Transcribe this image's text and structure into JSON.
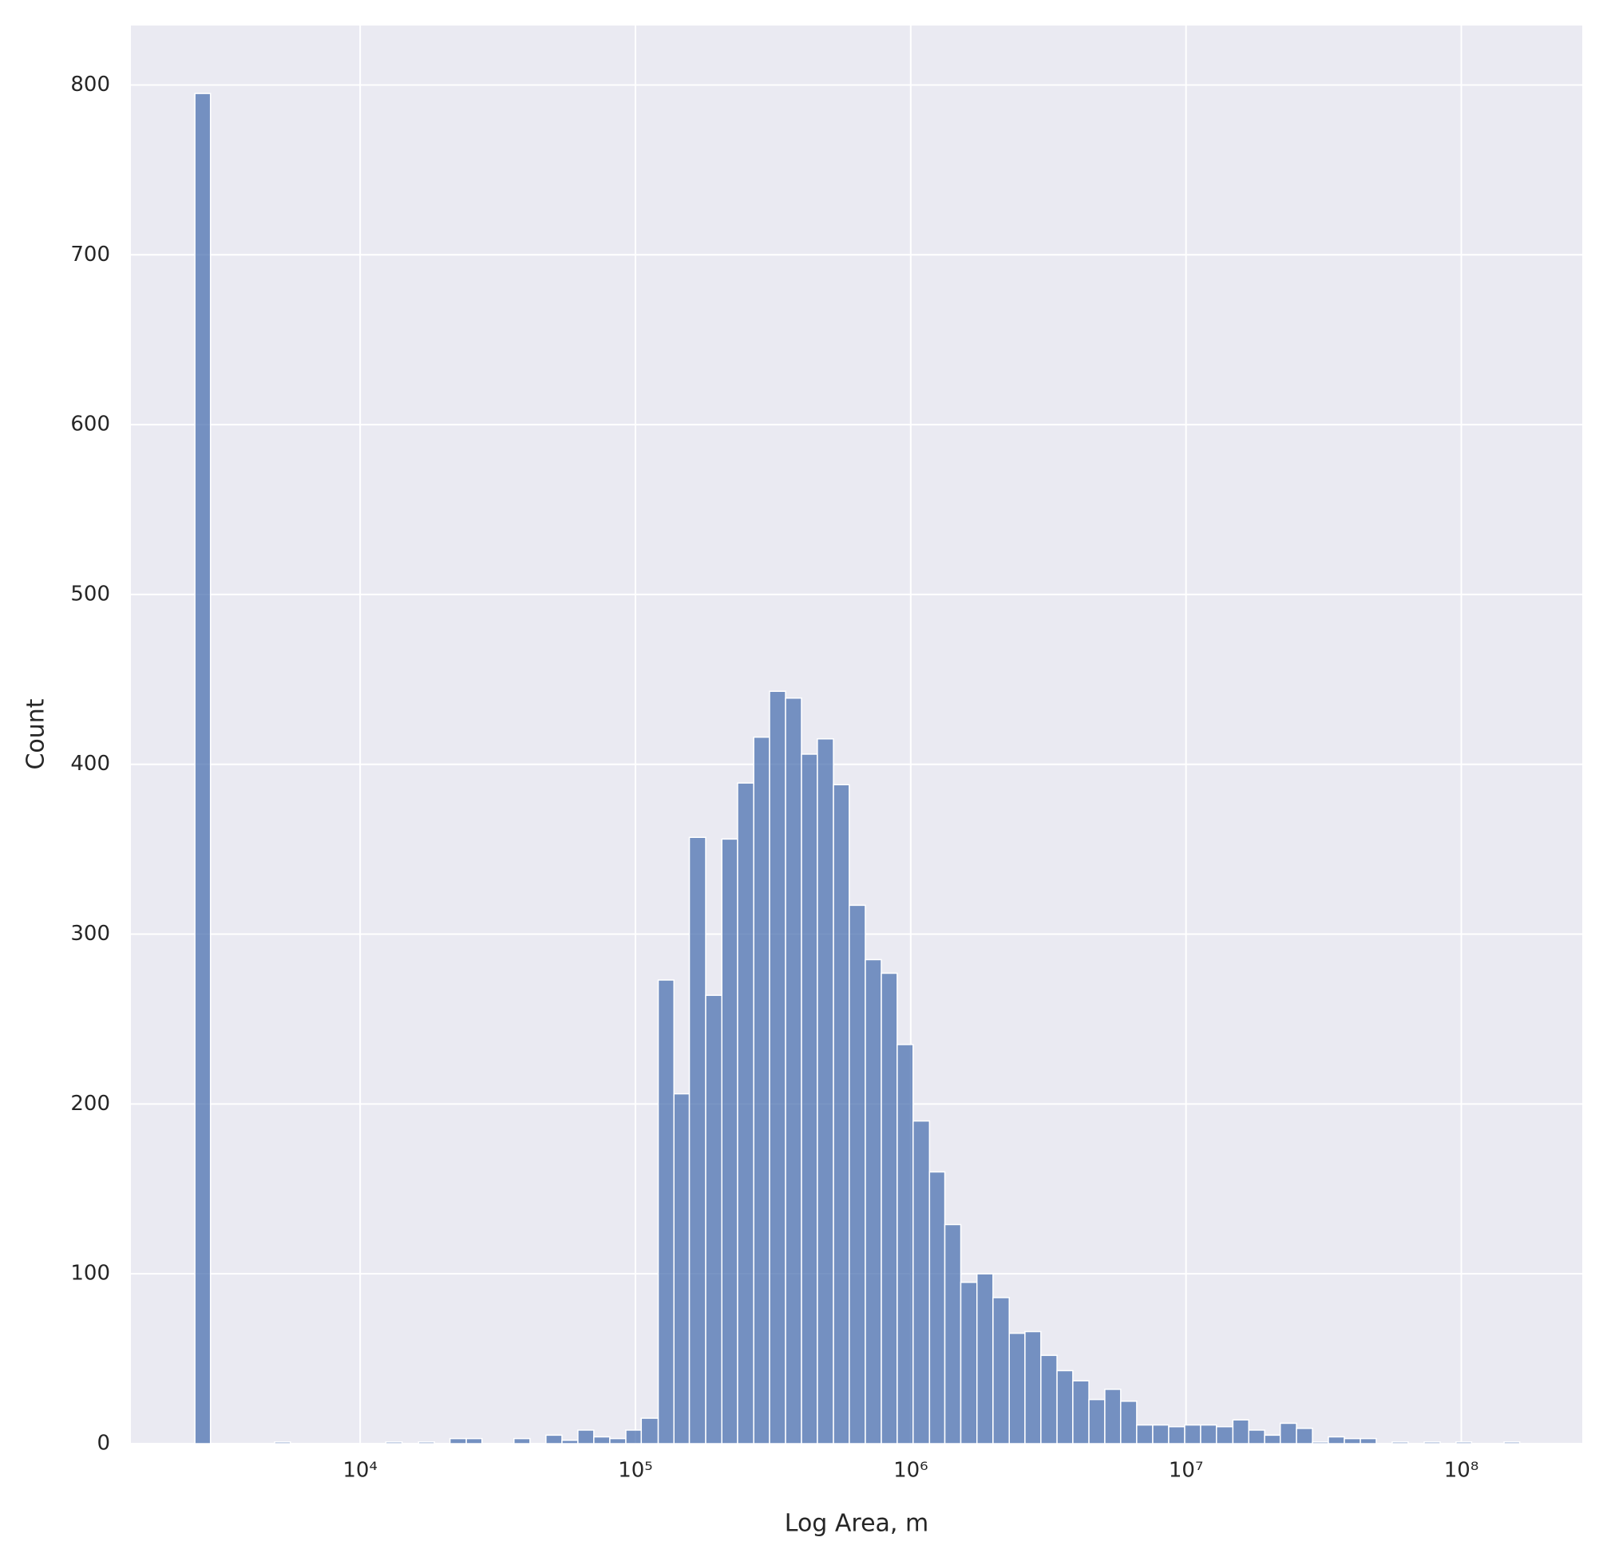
{
  "chart_data": {
    "type": "histogram",
    "xlabel": "Log Area, m",
    "ylabel": "Count",
    "xscale": "log",
    "grid": true,
    "color": "#4c72b0",
    "bins": [
      2510,
      2860,
      3270,
      3740,
      4280,
      4890,
      5580,
      6380,
      7290,
      8340,
      9530,
      10900,
      12400,
      14200,
      16300,
      18600,
      21200,
      24300,
      27700,
      31700,
      36200,
      41400,
      47300,
      54100,
      61800,
      70600,
      80700,
      92300,
      105000,
      121000,
      138000,
      157000,
      180000,
      206000,
      235000,
      269000,
      307000,
      351000,
      401000,
      458000,
      524000,
      598000,
      684000,
      782000,
      893000,
      1020000,
      1170000,
      1330000,
      1520000,
      1740000,
      1990000,
      2280000,
      2600000,
      2970000,
      3400000,
      3880000,
      4440000,
      5070000,
      5790000,
      6620000,
      7570000,
      8650000,
      9890000,
      11300000,
      12900000,
      14800000,
      16900000,
      19300000,
      22000000,
      25200000,
      28800000,
      32900000,
      37600000,
      43000000,
      49100000,
      56100000,
      64100000,
      73300000,
      83800000,
      95700000,
      109000000,
      125000000,
      143000000,
      163000000
    ],
    "values": [
      795,
      0,
      0,
      0,
      0,
      1,
      0,
      0,
      0,
      0,
      0,
      0,
      1,
      0,
      1,
      0,
      3,
      3,
      0,
      0,
      3,
      0,
      5,
      2,
      8,
      4,
      3,
      8,
      15,
      273,
      206,
      357,
      264,
      356,
      389,
      416,
      443,
      439,
      406,
      415,
      388,
      317,
      285,
      277,
      235,
      190,
      160,
      129,
      95,
      100,
      86,
      65,
      66,
      52,
      43,
      37,
      26,
      32,
      25,
      11,
      11,
      10,
      11,
      11,
      10,
      14,
      8,
      5,
      12,
      9,
      1,
      4,
      3,
      3,
      0,
      1,
      0,
      1,
      0,
      1,
      0,
      0,
      1
    ],
    "xlim": [
      1470,
      275000000
    ],
    "xticks": [
      {
        "value": 10000,
        "label": "10⁴"
      },
      {
        "value": 100000,
        "label": "10⁵"
      },
      {
        "value": 1000000,
        "label": "10⁶"
      },
      {
        "value": 10000000,
        "label": "10⁷"
      },
      {
        "value": 100000000,
        "label": "10⁸"
      }
    ],
    "ylim": [
      0,
      835
    ],
    "yticks": [
      0,
      100,
      200,
      300,
      400,
      500,
      600,
      700,
      800
    ]
  }
}
